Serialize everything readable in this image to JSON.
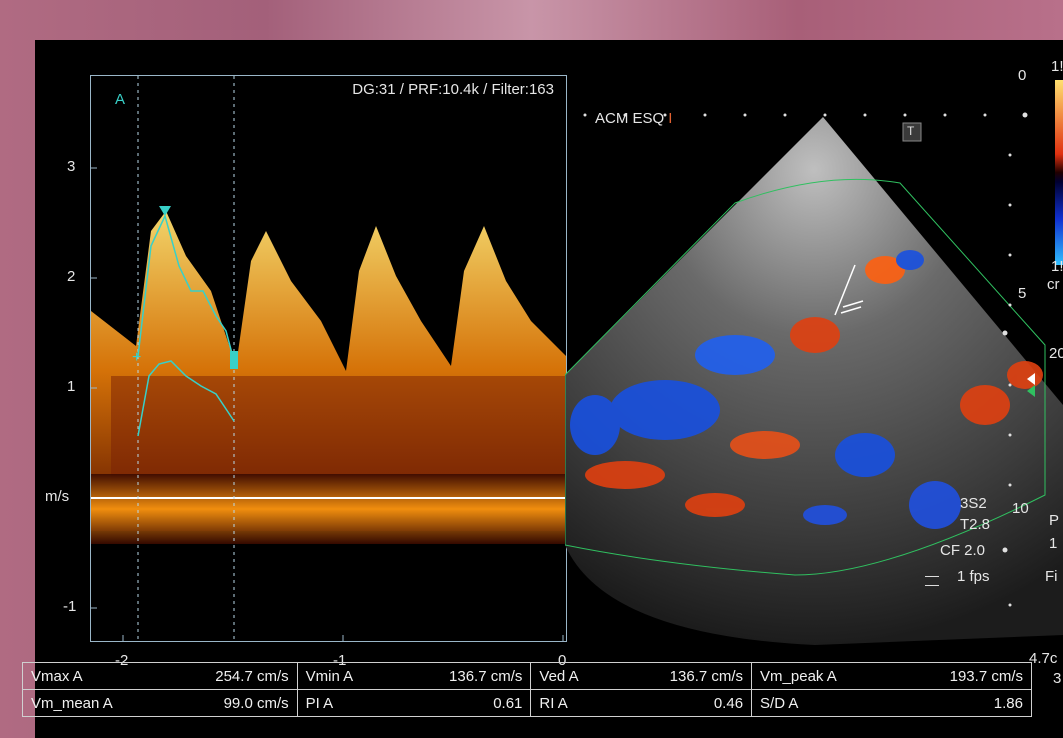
{
  "doppler": {
    "header": "DG:31 /   PRF:10.4k / Filter:163",
    "gate_label": "A",
    "y_ticks": [
      "3",
      "2",
      "1",
      "m/s",
      "-1"
    ],
    "x_ticks": [
      "-2",
      "-1",
      "0"
    ]
  },
  "image": {
    "label": "ACM ESQ",
    "cursor_mark": "I",
    "depth_marks": [
      "0",
      "5",
      "10"
    ],
    "settings": [
      "3S2",
      "T2.8",
      "CF 2.0",
      "1 fps"
    ],
    "edge_labels": [
      "1!",
      "1!",
      "cr",
      "20",
      "P",
      "1",
      "Fi",
      "4.7c",
      "3"
    ],
    "t_icon": "T"
  },
  "measurements": {
    "row1": [
      {
        "name": "Vmax  A",
        "value": "254.7  cm/s"
      },
      {
        "name": "Vmin  A",
        "value": "136.7  cm/s"
      },
      {
        "name": "Ved  A",
        "value": "136.7  cm/s"
      },
      {
        "name": "Vm_peak  A",
        "value": "193.7  cm/s"
      }
    ],
    "row2": [
      {
        "name": "Vm_mean  A",
        "value": "99.0  cm/s"
      },
      {
        "name": "PI  A",
        "value": "0.61"
      },
      {
        "name": "RI  A",
        "value": "0.46"
      },
      {
        "name": "S/D  A",
        "value": "1.86"
      }
    ]
  },
  "colors": {
    "envelope": "#38d0c8",
    "frame": "#9ab6c8",
    "doppler_warm": "#ffb020",
    "flow_red": "#e04010",
    "flow_blue": "#1850e0"
  }
}
